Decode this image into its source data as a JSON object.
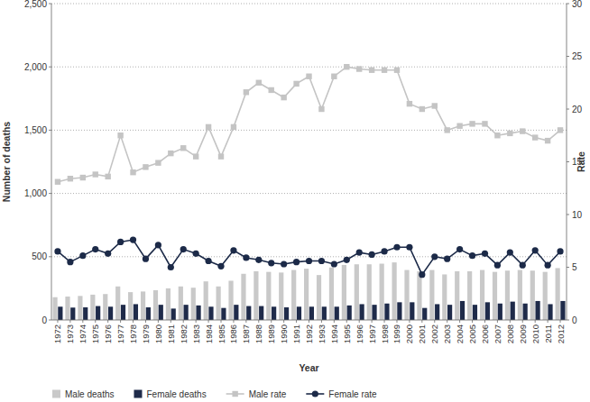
{
  "chart_data": {
    "type": "bar",
    "x_label": "Year",
    "y_label": "Number of deaths",
    "y2_label": "Rate",
    "categories": [
      "1972",
      "1973",
      "1974",
      "1975",
      "1976",
      "1977",
      "1978",
      "1979",
      "1980",
      "1981",
      "1982",
      "1983",
      "1984",
      "1985",
      "1986",
      "1987",
      "1988",
      "1989",
      "1990",
      "1991",
      "1992",
      "1993",
      "1994",
      "1995",
      "1996",
      "1997",
      "1998",
      "1999",
      "2000",
      "2001",
      "2002",
      "2003",
      "2004",
      "2005",
      "2006",
      "2007",
      "2008",
      "2009",
      "2010",
      "2011",
      "2012"
    ],
    "series": [
      {
        "name": "Male deaths",
        "type": "bar",
        "color": "#c9c9c9",
        "values": [
          180,
          185,
          190,
          200,
          205,
          265,
          220,
          225,
          235,
          250,
          265,
          255,
          305,
          265,
          310,
          365,
          385,
          380,
          375,
          395,
          405,
          355,
          415,
          435,
          440,
          440,
          445,
          455,
          395,
          385,
          395,
          360,
          385,
          385,
          395,
          380,
          390,
          395,
          390,
          380,
          410
        ]
      },
      {
        "name": "Female deaths",
        "type": "bar",
        "color": "#1f2b4a",
        "values": [
          105,
          98,
          100,
          110,
          105,
          120,
          125,
          100,
          120,
          90,
          120,
          115,
          105,
          95,
          120,
          110,
          110,
          105,
          100,
          105,
          105,
          105,
          105,
          115,
          125,
          120,
          130,
          140,
          140,
          95,
          125,
          120,
          150,
          120,
          140,
          130,
          145,
          130,
          150,
          125,
          150
        ]
      },
      {
        "name": "Male rate",
        "type": "line",
        "axis": "y2",
        "color": "#c4c4c4",
        "marker": "square",
        "values": [
          13.1,
          13.4,
          13.5,
          13.8,
          13.6,
          17.5,
          14.0,
          14.5,
          14.9,
          15.8,
          16.3,
          15.5,
          18.3,
          15.5,
          18.3,
          21.6,
          22.5,
          21.8,
          21.1,
          22.4,
          23.1,
          20.0,
          23.1,
          24.0,
          23.8,
          23.7,
          23.7,
          23.7,
          20.5,
          20.0,
          20.3,
          18.0,
          18.4,
          18.6,
          18.6,
          17.5,
          17.7,
          17.9,
          17.3,
          17.0,
          18.0
        ]
      },
      {
        "name": "Female rate",
        "type": "line",
        "axis": "y2",
        "color": "#1c2a48",
        "marker": "circle",
        "values": [
          6.5,
          5.5,
          6.1,
          6.7,
          6.3,
          7.4,
          7.6,
          5.8,
          7.1,
          5.0,
          6.7,
          6.3,
          5.6,
          5.1,
          6.6,
          5.9,
          5.7,
          5.4,
          5.3,
          5.5,
          5.6,
          5.6,
          5.3,
          5.7,
          6.4,
          6.2,
          6.5,
          6.9,
          6.9,
          4.3,
          6.0,
          5.8,
          6.7,
          6.1,
          6.3,
          5.2,
          6.4,
          5.2,
          6.6,
          5.2,
          6.5
        ]
      }
    ],
    "ylim": [
      0,
      2500
    ],
    "yticks": [
      0,
      500,
      {
        "value": 1000,
        "label": "1,000"
      },
      {
        "value": 1500,
        "label": "1,500"
      },
      {
        "value": 2000,
        "label": "2,000"
      },
      {
        "value": 2500,
        "label": "2,500"
      }
    ],
    "y2lim": [
      0,
      30
    ],
    "y2ticks": [
      0,
      5,
      10,
      15,
      20,
      25,
      30
    ],
    "grid": true,
    "legend": "bottom"
  }
}
